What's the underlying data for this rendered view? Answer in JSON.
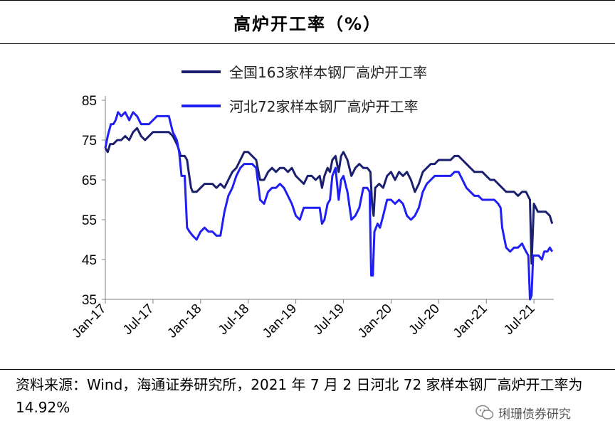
{
  "page": {
    "title": "高炉开工率（%）",
    "source_note": "资料来源：Wind，海通证券研究所，2021 年 7 月 2 日河北 72 家样本钢厂高炉开工率为 14.92%",
    "watermark": "琍珊债券研究"
  },
  "colors": {
    "national": "#1a1f6e",
    "hebei": "#1e1ef5",
    "axis": "#7f7f7f"
  },
  "chart_data": {
    "type": "line",
    "title": "高炉开工率（%）",
    "xlabel": "",
    "ylabel": "",
    "ylim": [
      35,
      85
    ],
    "xlim": [
      0,
      56.5
    ],
    "yticks": [
      35,
      45,
      55,
      65,
      75,
      85
    ],
    "xticks": [
      {
        "label": "Jan-17",
        "t": 0
      },
      {
        "label": "Jul-17",
        "t": 6
      },
      {
        "label": "Jan-18",
        "t": 12
      },
      {
        "label": "Jul-18",
        "t": 18
      },
      {
        "label": "Jan-19",
        "t": 24
      },
      {
        "label": "Jul-19",
        "t": 30
      },
      {
        "label": "Jan-20",
        "t": 36
      },
      {
        "label": "Jul-20",
        "t": 42
      },
      {
        "label": "Jan-21",
        "t": 48
      },
      {
        "label": "Jul-21",
        "t": 54
      }
    ],
    "legend_position": "top-center",
    "grid": false,
    "series": [
      {
        "name": "全国163家样本钢厂高炉开工率",
        "color": "#1a1f6e",
        "points": [
          [
            0,
            73
          ],
          [
            0.3,
            72
          ],
          [
            0.6,
            74
          ],
          [
            1.0,
            74
          ],
          [
            1.5,
            75
          ],
          [
            2.0,
            75
          ],
          [
            2.5,
            76
          ],
          [
            3.0,
            75
          ],
          [
            3.5,
            77
          ],
          [
            4.0,
            78
          ],
          [
            4.5,
            76
          ],
          [
            5.0,
            75
          ],
          [
            5.5,
            76
          ],
          [
            6.0,
            77
          ],
          [
            6.5,
            77
          ],
          [
            7.0,
            77
          ],
          [
            7.5,
            77
          ],
          [
            8.0,
            77
          ],
          [
            8.5,
            76
          ],
          [
            9.0,
            74
          ],
          [
            9.2,
            73
          ],
          [
            9.5,
            71
          ],
          [
            10.0,
            71
          ],
          [
            10.3,
            70
          ],
          [
            10.5,
            67
          ],
          [
            10.8,
            63
          ],
          [
            11.0,
            62
          ],
          [
            11.5,
            62
          ],
          [
            12.0,
            63
          ],
          [
            12.5,
            64
          ],
          [
            13.0,
            64
          ],
          [
            13.5,
            64
          ],
          [
            14.0,
            63
          ],
          [
            14.5,
            64
          ],
          [
            15.0,
            63
          ],
          [
            15.5,
            65
          ],
          [
            16.0,
            67
          ],
          [
            16.5,
            68
          ],
          [
            17.0,
            70
          ],
          [
            17.5,
            72
          ],
          [
            18.0,
            72
          ],
          [
            18.5,
            71
          ],
          [
            19.0,
            70
          ],
          [
            19.5,
            65
          ],
          [
            20.0,
            65
          ],
          [
            20.5,
            67
          ],
          [
            21.0,
            68
          ],
          [
            21.5,
            67
          ],
          [
            22.0,
            68
          ],
          [
            22.5,
            68
          ],
          [
            23.0,
            67
          ],
          [
            23.5,
            68
          ],
          [
            24.0,
            66
          ],
          [
            24.5,
            65
          ],
          [
            25.0,
            64
          ],
          [
            25.5,
            66
          ],
          [
            26.0,
            66
          ],
          [
            26.5,
            65
          ],
          [
            27.0,
            66
          ],
          [
            27.3,
            63
          ],
          [
            27.6,
            66
          ],
          [
            28.0,
            68
          ],
          [
            28.3,
            67
          ],
          [
            28.6,
            70
          ],
          [
            29.0,
            71
          ],
          [
            29.4,
            67
          ],
          [
            29.7,
            71
          ],
          [
            30.0,
            72
          ],
          [
            30.5,
            70
          ],
          [
            31.0,
            66
          ],
          [
            31.5,
            68
          ],
          [
            32.0,
            69
          ],
          [
            32.5,
            68
          ],
          [
            33.0,
            68
          ],
          [
            33.4,
            67
          ],
          [
            33.6,
            59
          ],
          [
            33.8,
            56
          ],
          [
            34.0,
            63
          ],
          [
            34.5,
            64
          ],
          [
            35.0,
            63
          ],
          [
            35.5,
            66
          ],
          [
            36.0,
            67
          ],
          [
            36.5,
            65
          ],
          [
            37.0,
            67
          ],
          [
            37.5,
            66
          ],
          [
            38.0,
            67
          ],
          [
            38.5,
            65
          ],
          [
            39.0,
            62
          ],
          [
            39.5,
            64
          ],
          [
            40.0,
            67
          ],
          [
            40.5,
            68
          ],
          [
            41.0,
            69
          ],
          [
            41.5,
            69
          ],
          [
            42.0,
            70
          ],
          [
            42.5,
            70
          ],
          [
            43.0,
            70
          ],
          [
            43.5,
            70
          ],
          [
            44.0,
            71
          ],
          [
            44.5,
            71
          ],
          [
            45.0,
            70
          ],
          [
            45.5,
            69
          ],
          [
            46.0,
            68
          ],
          [
            46.5,
            67
          ],
          [
            47.0,
            67
          ],
          [
            47.5,
            67
          ],
          [
            48.0,
            66
          ],
          [
            48.5,
            65
          ],
          [
            49.0,
            65
          ],
          [
            49.5,
            64
          ],
          [
            50.0,
            63
          ],
          [
            50.5,
            62
          ],
          [
            51.0,
            62
          ],
          [
            51.5,
            62
          ],
          [
            52.0,
            61
          ],
          [
            52.5,
            62
          ],
          [
            53.0,
            62
          ],
          [
            53.5,
            60
          ],
          [
            53.7,
            44
          ],
          [
            54.0,
            59
          ],
          [
            54.5,
            57
          ],
          [
            55.0,
            57
          ],
          [
            55.5,
            57
          ],
          [
            56.0,
            56
          ],
          [
            56.3,
            54
          ]
        ]
      },
      {
        "name": "河北72家样本钢厂高炉开工率",
        "color": "#1e1ef5",
        "points": [
          [
            0,
            73
          ],
          [
            0.3,
            76
          ],
          [
            0.7,
            79
          ],
          [
            1.0,
            79
          ],
          [
            1.3,
            80
          ],
          [
            1.6,
            82
          ],
          [
            2.0,
            81
          ],
          [
            2.5,
            82
          ],
          [
            3.0,
            80
          ],
          [
            3.5,
            82
          ],
          [
            4.0,
            81
          ],
          [
            4.5,
            79
          ],
          [
            5.0,
            79
          ],
          [
            5.5,
            79
          ],
          [
            6.0,
            80
          ],
          [
            6.5,
            81
          ],
          [
            7.0,
            81
          ],
          [
            7.5,
            81
          ],
          [
            8.0,
            81
          ],
          [
            8.5,
            77
          ],
          [
            9.0,
            75
          ],
          [
            9.3,
            72
          ],
          [
            9.6,
            66
          ],
          [
            10.0,
            66
          ],
          [
            10.3,
            53
          ],
          [
            10.6,
            52
          ],
          [
            11.0,
            51
          ],
          [
            11.5,
            50
          ],
          [
            12.0,
            52
          ],
          [
            12.5,
            53
          ],
          [
            13.0,
            52
          ],
          [
            13.5,
            52
          ],
          [
            14.0,
            51
          ],
          [
            14.5,
            51
          ],
          [
            15.0,
            57
          ],
          [
            15.5,
            61
          ],
          [
            16.0,
            63
          ],
          [
            16.5,
            66
          ],
          [
            17.0,
            68
          ],
          [
            17.5,
            69
          ],
          [
            18.0,
            69
          ],
          [
            18.5,
            69
          ],
          [
            19.0,
            68
          ],
          [
            19.5,
            60
          ],
          [
            20.0,
            59
          ],
          [
            20.5,
            62
          ],
          [
            21.0,
            63
          ],
          [
            21.5,
            63
          ],
          [
            22.0,
            64
          ],
          [
            22.5,
            63
          ],
          [
            23.0,
            61
          ],
          [
            23.5,
            59
          ],
          [
            24.0,
            56
          ],
          [
            24.5,
            55
          ],
          [
            25.0,
            58
          ],
          [
            25.5,
            58
          ],
          [
            26.0,
            58
          ],
          [
            26.5,
            58
          ],
          [
            27.0,
            58
          ],
          [
            27.3,
            54
          ],
          [
            27.6,
            55
          ],
          [
            28.0,
            59
          ],
          [
            28.3,
            60
          ],
          [
            28.6,
            66
          ],
          [
            29.0,
            68
          ],
          [
            29.4,
            60
          ],
          [
            29.7,
            65
          ],
          [
            30.0,
            66
          ],
          [
            30.5,
            62
          ],
          [
            31.0,
            55
          ],
          [
            31.5,
            56
          ],
          [
            32.0,
            58
          ],
          [
            32.5,
            63
          ],
          [
            33.0,
            63
          ],
          [
            33.3,
            62
          ],
          [
            33.5,
            41
          ],
          [
            33.7,
            41
          ],
          [
            33.9,
            52
          ],
          [
            34.3,
            54
          ],
          [
            34.6,
            53
          ],
          [
            35.0,
            56
          ],
          [
            35.5,
            60
          ],
          [
            36.0,
            60
          ],
          [
            36.5,
            59
          ],
          [
            37.0,
            60
          ],
          [
            37.5,
            59
          ],
          [
            38.0,
            56
          ],
          [
            38.5,
            55
          ],
          [
            39.0,
            56
          ],
          [
            39.5,
            58
          ],
          [
            40.0,
            62
          ],
          [
            40.5,
            64
          ],
          [
            41.0,
            65
          ],
          [
            41.5,
            66
          ],
          [
            42.0,
            66
          ],
          [
            42.5,
            66
          ],
          [
            43.0,
            66
          ],
          [
            43.5,
            66
          ],
          [
            44.0,
            67
          ],
          [
            44.5,
            67
          ],
          [
            45.0,
            65
          ],
          [
            45.5,
            63
          ],
          [
            46.0,
            62
          ],
          [
            46.5,
            61
          ],
          [
            47.0,
            61
          ],
          [
            47.5,
            60
          ],
          [
            48.0,
            60
          ],
          [
            48.5,
            60
          ],
          [
            49.0,
            60
          ],
          [
            49.5,
            59
          ],
          [
            49.8,
            58
          ],
          [
            50.0,
            53
          ],
          [
            50.5,
            48
          ],
          [
            51.0,
            47
          ],
          [
            51.5,
            48
          ],
          [
            52.0,
            48
          ],
          [
            52.5,
            49
          ],
          [
            53.0,
            47
          ],
          [
            53.3,
            46
          ],
          [
            53.5,
            35
          ],
          [
            53.7,
            36
          ],
          [
            53.9,
            46
          ],
          [
            54.3,
            46
          ],
          [
            54.6,
            46
          ],
          [
            55.0,
            45
          ],
          [
            55.3,
            47
          ],
          [
            55.7,
            47
          ],
          [
            56.0,
            48
          ],
          [
            56.3,
            47
          ]
        ]
      }
    ]
  }
}
